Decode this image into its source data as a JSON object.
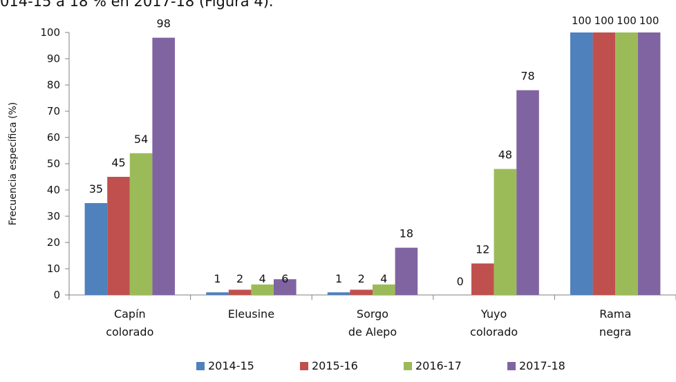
{
  "page": {
    "header_fragment": "014-15 a 18 % en 2017-18 (Figura 4)."
  },
  "chart_data": {
    "type": "bar",
    "title": "",
    "xlabel": "",
    "ylabel": "Frecuencia específica (%)",
    "ylim": [
      0,
      100
    ],
    "yticks": [
      0,
      10,
      20,
      30,
      40,
      50,
      60,
      70,
      80,
      90,
      100
    ],
    "grid": false,
    "legend_position": "bottom",
    "categories": [
      [
        "Capín",
        "colorado"
      ],
      [
        "Eleusine"
      ],
      [
        "Sorgo",
        "de Alepo"
      ],
      [
        "Yuyo",
        "colorado"
      ],
      [
        "Rama",
        "negra"
      ]
    ],
    "series": [
      {
        "name": "2014-15",
        "color": "#4F81BD",
        "values": [
          35,
          1,
          1,
          0,
          100
        ]
      },
      {
        "name": "2015-16",
        "color": "#C0504D",
        "values": [
          45,
          2,
          2,
          12,
          100
        ]
      },
      {
        "name": "2016-17",
        "color": "#9BBB59",
        "values": [
          54,
          4,
          4,
          48,
          100
        ]
      },
      {
        "name": "2017-18",
        "color": "#8064A2",
        "values": [
          98,
          6,
          18,
          78,
          100
        ]
      }
    ]
  }
}
